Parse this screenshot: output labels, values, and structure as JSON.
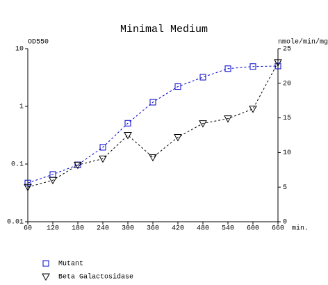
{
  "chart_data": {
    "type": "line",
    "title": "Minimal Medium",
    "ylabel": "OD550",
    "y2label": "nmole/min/mg",
    "xunit": "min.",
    "x": [
      60,
      120,
      180,
      240,
      300,
      360,
      420,
      480,
      540,
      600,
      660
    ],
    "xlim": [
      60,
      660
    ],
    "xticks": [
      60,
      120,
      180,
      240,
      300,
      360,
      420,
      480,
      540,
      600,
      660
    ],
    "ylim": [
      0.01,
      10
    ],
    "yticks": [
      0.01,
      0.1,
      1,
      10
    ],
    "yscale": "log",
    "y2lim": [
      0,
      25
    ],
    "y2ticks": [
      0,
      5,
      10,
      15,
      20,
      25
    ],
    "series": [
      {
        "name": "Mutant",
        "color": "#0000cc",
        "marker": "square",
        "values": [
          0.047,
          0.066,
          0.097,
          0.195,
          0.51,
          1.18,
          2.2,
          3.2,
          4.5,
          4.9,
          5.0
        ]
      },
      {
        "name": "Beta Galactosidase",
        "color": "#000000",
        "marker": "triangle",
        "axis": "y2",
        "values": [
          5.0,
          6.0,
          8.2,
          9.1,
          12.5,
          9.3,
          12.2,
          14.2,
          14.9,
          16.3,
          23.0
        ]
      }
    ]
  }
}
